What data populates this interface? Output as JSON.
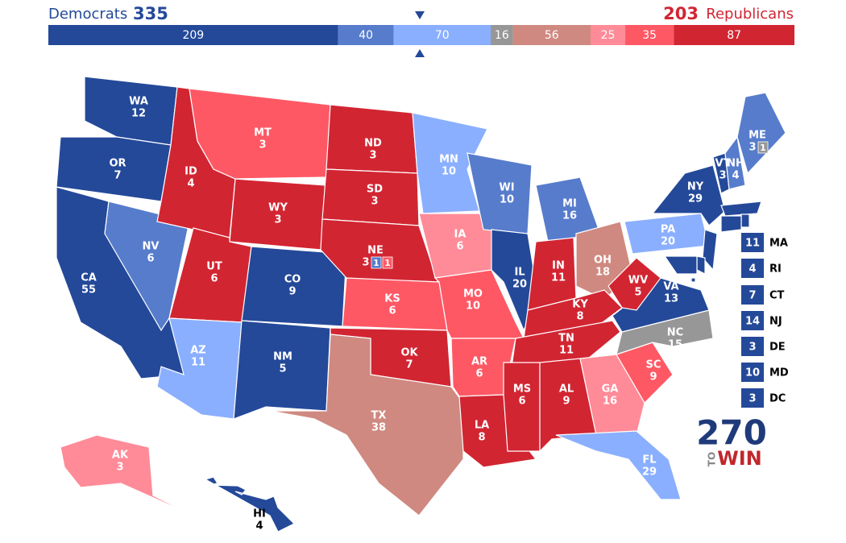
{
  "header": {
    "dem_label": "Democrats",
    "dem_total": 335,
    "rep_total": 203,
    "rep_label": "Republicans"
  },
  "ratings": [
    {
      "seats": 209,
      "color": "#244999"
    },
    {
      "seats": 40,
      "color": "#577ccc"
    },
    {
      "seats": 70,
      "color": "#8aafff"
    },
    {
      "seats": 16,
      "color": "#979797"
    },
    {
      "seats": 56,
      "color": "#cf8980"
    },
    {
      "seats": 25,
      "color": "#ff8b98"
    },
    {
      "seats": 35,
      "color": "#ff5865"
    },
    {
      "seats": 87,
      "color": "#d22532"
    }
  ],
  "states": [
    {
      "abbr": "WA",
      "ev": 12,
      "rating": 0
    },
    {
      "abbr": "OR",
      "ev": 7,
      "rating": 0
    },
    {
      "abbr": "CA",
      "ev": 55,
      "rating": 0
    },
    {
      "abbr": "NV",
      "ev": 6,
      "rating": 1
    },
    {
      "abbr": "ID",
      "ev": 4,
      "rating": 7
    },
    {
      "abbr": "MT",
      "ev": 3,
      "rating": 6
    },
    {
      "abbr": "WY",
      "ev": 3,
      "rating": 7
    },
    {
      "abbr": "UT",
      "ev": 6,
      "rating": 7
    },
    {
      "abbr": "AZ",
      "ev": 11,
      "rating": 2
    },
    {
      "abbr": "CO",
      "ev": 9,
      "rating": 0
    },
    {
      "abbr": "NM",
      "ev": 5,
      "rating": 0
    },
    {
      "abbr": "ND",
      "ev": 3,
      "rating": 7
    },
    {
      "abbr": "SD",
      "ev": 3,
      "rating": 7
    },
    {
      "abbr": "NE",
      "ev": 3,
      "rating": 7,
      "splits": [
        {
          "ev": 1,
          "rating": 1
        },
        {
          "ev": 1,
          "rating": 6
        }
      ]
    },
    {
      "abbr": "KS",
      "ev": 6,
      "rating": 6
    },
    {
      "abbr": "OK",
      "ev": 7,
      "rating": 7
    },
    {
      "abbr": "TX",
      "ev": 38,
      "rating": 4
    },
    {
      "abbr": "MN",
      "ev": 10,
      "rating": 2
    },
    {
      "abbr": "IA",
      "ev": 6,
      "rating": 5
    },
    {
      "abbr": "MO",
      "ev": 10,
      "rating": 6
    },
    {
      "abbr": "AR",
      "ev": 6,
      "rating": 6
    },
    {
      "abbr": "LA",
      "ev": 8,
      "rating": 7
    },
    {
      "abbr": "WI",
      "ev": 10,
      "rating": 1
    },
    {
      "abbr": "IL",
      "ev": 20,
      "rating": 0
    },
    {
      "abbr": "MI",
      "ev": 16,
      "rating": 1
    },
    {
      "abbr": "IN",
      "ev": 11,
      "rating": 7
    },
    {
      "abbr": "OH",
      "ev": 18,
      "rating": 4
    },
    {
      "abbr": "KY",
      "ev": 8,
      "rating": 7
    },
    {
      "abbr": "TN",
      "ev": 11,
      "rating": 7
    },
    {
      "abbr": "MS",
      "ev": 6,
      "rating": 7
    },
    {
      "abbr": "AL",
      "ev": 9,
      "rating": 7
    },
    {
      "abbr": "GA",
      "ev": 16,
      "rating": 5
    },
    {
      "abbr": "FL",
      "ev": 29,
      "rating": 2
    },
    {
      "abbr": "SC",
      "ev": 9,
      "rating": 6
    },
    {
      "abbr": "NC",
      "ev": 15,
      "rating": 3
    },
    {
      "abbr": "VA",
      "ev": 13,
      "rating": 0
    },
    {
      "abbr": "WV",
      "ev": 5,
      "rating": 7
    },
    {
      "abbr": "PA",
      "ev": 20,
      "rating": 2
    },
    {
      "abbr": "NY",
      "ev": 29,
      "rating": 0
    },
    {
      "abbr": "VT",
      "ev": 3,
      "rating": 0
    },
    {
      "abbr": "NH",
      "ev": 4,
      "rating": 1
    },
    {
      "abbr": "ME",
      "ev": 3,
      "rating": 1,
      "splits": [
        {
          "ev": 1,
          "rating": 3
        }
      ]
    },
    {
      "abbr": "MA",
      "ev": 11,
      "rating": 0
    },
    {
      "abbr": "RI",
      "ev": 4,
      "rating": 0
    },
    {
      "abbr": "CT",
      "ev": 7,
      "rating": 0
    },
    {
      "abbr": "NJ",
      "ev": 14,
      "rating": 0
    },
    {
      "abbr": "DE",
      "ev": 3,
      "rating": 0
    },
    {
      "abbr": "MD",
      "ev": 10,
      "rating": 0
    },
    {
      "abbr": "DC",
      "ev": 3,
      "rating": 0
    },
    {
      "abbr": "AK",
      "ev": 3,
      "rating": 5
    },
    {
      "abbr": "HI",
      "ev": 4,
      "rating": 0
    }
  ],
  "logo": {
    "number": "270",
    "to": "TO",
    "win": "WIN"
  }
}
